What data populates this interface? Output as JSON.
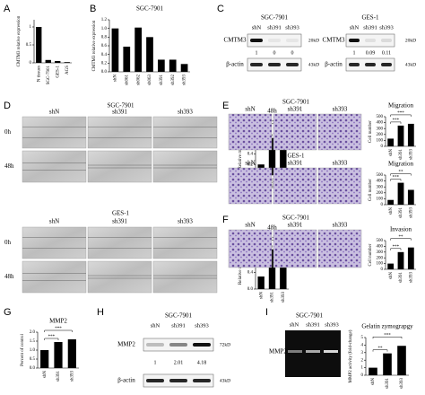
{
  "panel_labels": [
    "A",
    "B",
    "C",
    "D",
    "E",
    "F",
    "G",
    "H",
    "I"
  ],
  "chart_data": [
    {
      "type": "bar",
      "ylabel": "CMTM3 relative expression",
      "categories": [
        "N tissues",
        "SGC-7901",
        "GES-1",
        "AGS"
      ],
      "values": [
        1.0,
        0.08,
        0.05,
        0.02
      ],
      "ylim": [
        0,
        1.2
      ],
      "yticks": [
        0,
        0.5,
        1
      ],
      "color": "#000000"
    },
    {
      "type": "bar",
      "title": "SGC-7901",
      "ylabel": "CMTM3 relative expression",
      "categories": [
        "shN",
        "sh061",
        "sh062",
        "sh063",
        "sh391",
        "sh392",
        "sh393"
      ],
      "values": [
        1.0,
        0.58,
        1.02,
        0.8,
        0.28,
        0.28,
        0.18
      ],
      "ylim": [
        0,
        1.2
      ],
      "yticks": [
        {
          "value": 0,
          "label": "0.0"
        },
        0.2,
        0.4,
        0.6,
        0.8,
        {
          "value": 1,
          "label": "1.0"
        },
        1.2
      ],
      "color": "#000000"
    },
    {
      "type": "bar",
      "title": "48h",
      "ylabel": "Relative migration rate",
      "categories": [
        "shN",
        "sh391",
        "sh393"
      ],
      "values": [
        0.2,
        0.7,
        0.8
      ],
      "ylim": [
        0,
        1
      ],
      "yticks": [
        {
          "value": 0,
          "label": "0.0"
        },
        0.2,
        0.4,
        0.6,
        0.8,
        {
          "value": 1,
          "label": "1.0"
        }
      ],
      "color": "#000000",
      "annotations": [
        "**",
        "**"
      ]
    },
    {
      "type": "bar",
      "title": "48h",
      "ylabel": "Relative migration rate",
      "categories": [
        "shN",
        "sh391",
        "sh393"
      ],
      "values": [
        0.3,
        0.95,
        0.8
      ],
      "ylim": [
        0,
        1.2
      ],
      "yticks": [
        {
          "value": 0,
          "label": "0.0"
        },
        0.4,
        0.8,
        1.2
      ],
      "color": "#000000",
      "annotations": [
        "***",
        "**"
      ]
    },
    {
      "type": "bar",
      "title": "Migration",
      "ylabel": "Cell number",
      "categories": [
        "shN",
        "sh391",
        "sh393"
      ],
      "values": [
        130,
        350,
        380
      ],
      "ylim": [
        0,
        500
      ],
      "yticks": [
        0,
        100,
        200,
        300,
        400,
        500
      ],
      "color": "#000000",
      "annotations": [
        "***",
        "***"
      ]
    },
    {
      "type": "bar",
      "title": "Migration",
      "ylabel": "Cell number",
      "categories": [
        "shN",
        "sh391",
        "sh393"
      ],
      "values": [
        80,
        370,
        250
      ],
      "ylim": [
        0,
        500
      ],
      "yticks": [
        0,
        100,
        200,
        300,
        400,
        500
      ],
      "color": "#000000",
      "annotations": [
        "***",
        "**"
      ]
    },
    {
      "type": "bar",
      "title": "Invasion",
      "ylabel": "Cell number",
      "categories": [
        "shN",
        "sh391",
        "sh393"
      ],
      "values": [
        100,
        300,
        380
      ],
      "ylim": [
        0,
        500
      ],
      "yticks": [
        0,
        100,
        200,
        300,
        400,
        500
      ],
      "color": "#000000",
      "annotations": [
        "***",
        "**"
      ]
    },
    {
      "type": "bar",
      "title": "MMP2",
      "ylabel": "Percent of control",
      "categories": [
        "shN",
        "sh391",
        "sh393"
      ],
      "values": [
        1.0,
        1.45,
        1.6
      ],
      "ylim": [
        0,
        2
      ],
      "yticks": [
        {
          "value": 0,
          "label": "0.0"
        },
        0.5,
        {
          "value": 1,
          "label": "1.0"
        },
        1.5,
        {
          "value": 2,
          "label": "2.0"
        }
      ],
      "color": "#000000",
      "annotations": [
        "***",
        "***"
      ]
    },
    {
      "type": "bar",
      "title": "Gelatin zymograpgy",
      "ylabel": "MMP2 activity (fold-change)",
      "categories": [
        "shN",
        "sh391",
        "sh393"
      ],
      "values": [
        1.0,
        2.9,
        3.9
      ],
      "ylim": [
        0,
        5
      ],
      "yticks": [
        0,
        1,
        2,
        3,
        4,
        5
      ],
      "color": "#000000",
      "annotations": [
        "**",
        "***"
      ]
    }
  ],
  "blots": [
    {
      "title": "SGC-7901",
      "lanes": [
        "shN",
        "sh391",
        "sh393"
      ],
      "bands": [
        {
          "label": "CMTM3",
          "size": "20kD"
        },
        {
          "label": "β-actin",
          "size": "43kD"
        }
      ],
      "ratios": [
        1,
        0,
        0
      ]
    },
    {
      "title": "GES-1",
      "lanes": [
        "shN",
        "sh391",
        "sh393"
      ],
      "bands": [
        {
          "label": "CMTM3",
          "size": "20kD"
        },
        {
          "label": "β-actin",
          "size": "43kD"
        }
      ],
      "ratios": [
        1,
        0.09,
        0.11
      ]
    },
    {
      "title": "SGC-7901",
      "lanes": [
        "shN",
        "sh391",
        "sh393"
      ],
      "bands": [
        {
          "label": "MMP2",
          "size": "72kD"
        },
        {
          "label": "β-actin",
          "size": "43kD"
        }
      ],
      "ratios": [
        1,
        2.01,
        4.18
      ]
    }
  ],
  "zymogram": {
    "title": "SGC-7901",
    "lanes": [
      "shN",
      "sh391",
      "sh393"
    ],
    "label": "MMP2"
  },
  "micrographs": [
    {
      "title": "SGC-7901",
      "columns": [
        "shN",
        "sh391",
        "sh393"
      ],
      "rows": [
        "0h",
        "48h"
      ]
    },
    {
      "title": "GES-1",
      "columns": [
        "shN",
        "sh391",
        "sh393"
      ],
      "rows": [
        "0h",
        "48h"
      ]
    },
    {
      "title": "SGC-7901",
      "columns": [
        "shN",
        "sh391",
        "sh393"
      ]
    },
    {
      "title": "GES-1",
      "columns": [
        "shN",
        "sh391",
        "sh393"
      ]
    },
    {
      "title": "SGC-7901",
      "columns": [
        "shN",
        "sh391",
        "sh393"
      ]
    }
  ]
}
